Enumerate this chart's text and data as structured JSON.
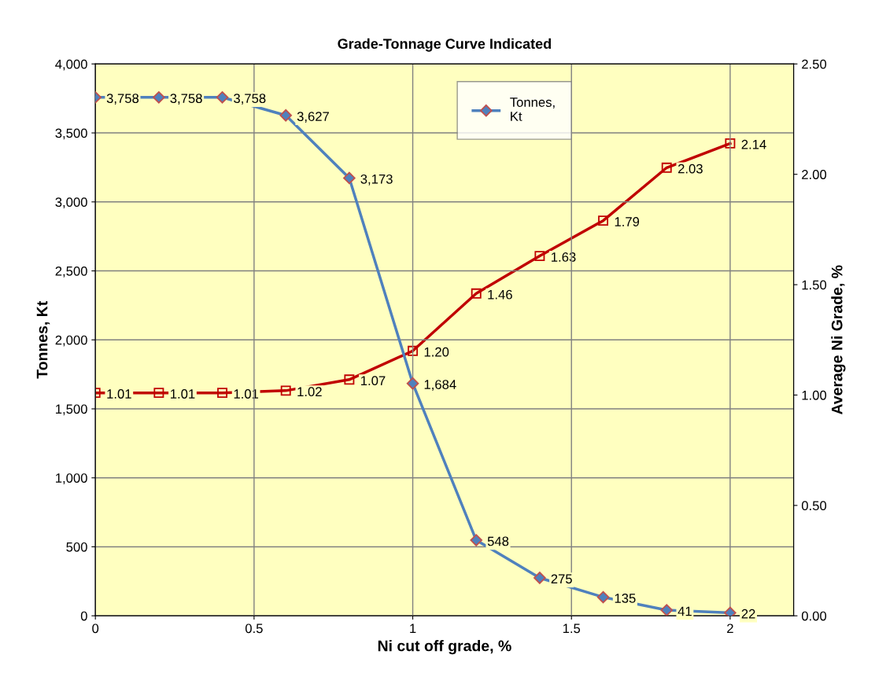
{
  "chart_data": {
    "type": "line",
    "title": "Grade-Tonnage Curve Indicated",
    "xlabel": "Ni cut off grade, %",
    "ylabel": "Tonnes, Kt",
    "y2label": "Average Ni Grade, %",
    "x": [
      0,
      0.2,
      0.4,
      0.6,
      0.8,
      1.0,
      1.2,
      1.4,
      1.6,
      1.8,
      2.0
    ],
    "series": [
      {
        "name": "Tonnes,\nKt",
        "color": "#4f81bd",
        "marker": "diamond",
        "values": [
          3758,
          3758,
          3758,
          3627,
          3173,
          1684,
          548,
          275,
          135,
          41,
          22
        ],
        "value_labels": [
          "3,758",
          "3,758",
          "3,758",
          "3,627",
          "3,173",
          "1,684",
          "548",
          "275",
          "135",
          "41",
          "22"
        ]
      },
      {
        "color": "#c00000",
        "marker": "square",
        "axis": "y2",
        "values": [
          1.01,
          1.01,
          1.01,
          1.02,
          1.07,
          1.2,
          1.46,
          1.63,
          1.79,
          2.03,
          2.14
        ],
        "value_labels": [
          "1.01",
          "1.01",
          "1.01",
          "1.02",
          "1.07",
          "1.20",
          "1.46",
          "1.63",
          "1.79",
          "2.03",
          "2.14"
        ]
      }
    ],
    "xlim": [
      0,
      2.2
    ],
    "xticks": [
      0,
      0.5,
      1,
      1.5,
      2
    ],
    "ylim": [
      0,
      4000
    ],
    "yticks": [
      0,
      500,
      {
        "value": 1000,
        "label": "1,000"
      },
      {
        "value": 1500,
        "label": "1,500"
      },
      {
        "value": 2000,
        "label": "2,000"
      },
      {
        "value": 2500,
        "label": "2,500"
      },
      {
        "value": 3000,
        "label": "3,000"
      },
      {
        "value": 3500,
        "label": "3,500"
      },
      {
        "value": 4000,
        "label": "4,000"
      }
    ],
    "y2lim": [
      0,
      2.5
    ],
    "y2ticks": [
      {
        "value": 0,
        "label": "0.00"
      },
      {
        "value": 0.5,
        "label": "0.50"
      },
      {
        "value": 1.0,
        "label": "1.00"
      },
      {
        "value": 1.5,
        "label": "1.50"
      },
      {
        "value": 2.0,
        "label": "2.00"
      },
      {
        "value": 2.5,
        "label": "2.50"
      }
    ],
    "grid": true,
    "legend": "top",
    "line_style": "solid"
  }
}
